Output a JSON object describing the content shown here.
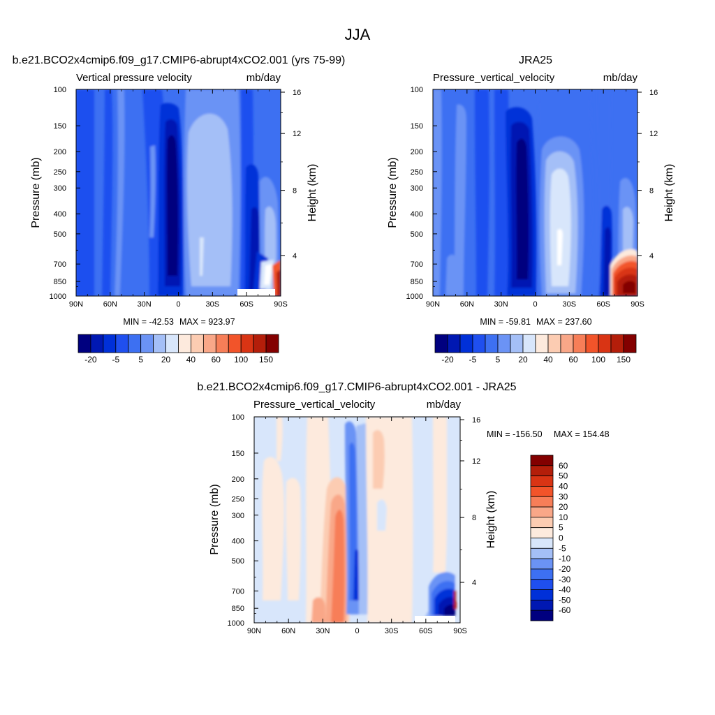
{
  "figure": {
    "title": "JJA",
    "colors": {
      "levels_top": [
        "#00007f",
        "#0018b2",
        "#0030d8",
        "#1f4fef",
        "#3d70f2",
        "#6b93f5",
        "#a4bff7",
        "#d8e6fb",
        "#fdeadd",
        "#fcccb2",
        "#f9a788",
        "#f77e58",
        "#f2542a",
        "#d93414",
        "#b41e0a",
        "#830000"
      ],
      "levels_diff": [
        "#00007f",
        "#0018b2",
        "#0030d8",
        "#1f4fef",
        "#3d70f2",
        "#6b93f5",
        "#a4bff7",
        "#d8e6fb",
        "#fdeadd",
        "#fcccb2",
        "#f9a788",
        "#f77e58",
        "#f2542a",
        "#d93414",
        "#b41e0a",
        "#830000"
      ]
    }
  },
  "chart_data": [
    {
      "id": "model",
      "type": "heatmap",
      "title": "b.e21.BCO2x4cmip6.f09_g17.CMIP6-abrupt4xCO2.001 (yrs 75-99)",
      "variable": "Vertical pressure velocity",
      "units": "mb/day",
      "xlabel": "",
      "ylabel": "Pressure (mb)",
      "ylabel_right": "Height (km)",
      "x_ticks": [
        "90N",
        "60N",
        "30N",
        "0",
        "30S",
        "60S",
        "90S"
      ],
      "y_ticks": [
        "100",
        "150",
        "200",
        "250",
        "300",
        "400",
        "500",
        "700",
        "850",
        "1000"
      ],
      "y_right_ticks": [
        "16",
        "12",
        "8",
        "4"
      ],
      "y_scale": "log",
      "ylim": [
        1000,
        100
      ],
      "min": "MIN = -42.53",
      "max": "MAX = 923.97",
      "colorbar_labels": [
        "-20",
        "-5",
        "5",
        "20",
        "40",
        "60",
        "100",
        "150"
      ]
    },
    {
      "id": "obs",
      "type": "heatmap",
      "title": "JRA25",
      "variable": "Pressure_vertical_velocity",
      "units": "mb/day",
      "xlabel": "",
      "ylabel": "Pressure (mb)",
      "ylabel_right": "Height (km)",
      "x_ticks": [
        "90N",
        "60N",
        "30N",
        "0",
        "30S",
        "60S",
        "90S"
      ],
      "y_ticks": [
        "100",
        "150",
        "200",
        "250",
        "300",
        "400",
        "500",
        "700",
        "850",
        "1000"
      ],
      "y_right_ticks": [
        "16",
        "12",
        "8",
        "4"
      ],
      "y_scale": "log",
      "ylim": [
        1000,
        100
      ],
      "min": "MIN = -59.81",
      "max": "MAX = 237.60",
      "colorbar_labels": [
        "-20",
        "-5",
        "5",
        "20",
        "40",
        "60",
        "100",
        "150"
      ]
    },
    {
      "id": "diff",
      "type": "heatmap",
      "title": "b.e21.BCO2x4cmip6.f09_g17.CMIP6-abrupt4xCO2.001 - JRA25",
      "variable": "Pressure_vertical_velocity",
      "units": "mb/day",
      "xlabel": "",
      "ylabel": "Pressure (mb)",
      "ylabel_right": "Height (km)",
      "x_ticks": [
        "90N",
        "60N",
        "30N",
        "0",
        "30S",
        "60S",
        "90S"
      ],
      "y_ticks": [
        "100",
        "150",
        "200",
        "250",
        "300",
        "400",
        "500",
        "700",
        "850",
        "1000"
      ],
      "y_right_ticks": [
        "16",
        "12",
        "8",
        "4"
      ],
      "y_scale": "log",
      "ylim": [
        1000,
        100
      ],
      "min": "MIN = -156.50",
      "max": "MAX = 154.48",
      "colorbar_labels": [
        "60",
        "50",
        "40",
        "30",
        "20",
        "10",
        "5",
        "0",
        "-5",
        "-10",
        "-20",
        "-30",
        "-40",
        "-50",
        "-60"
      ]
    }
  ]
}
